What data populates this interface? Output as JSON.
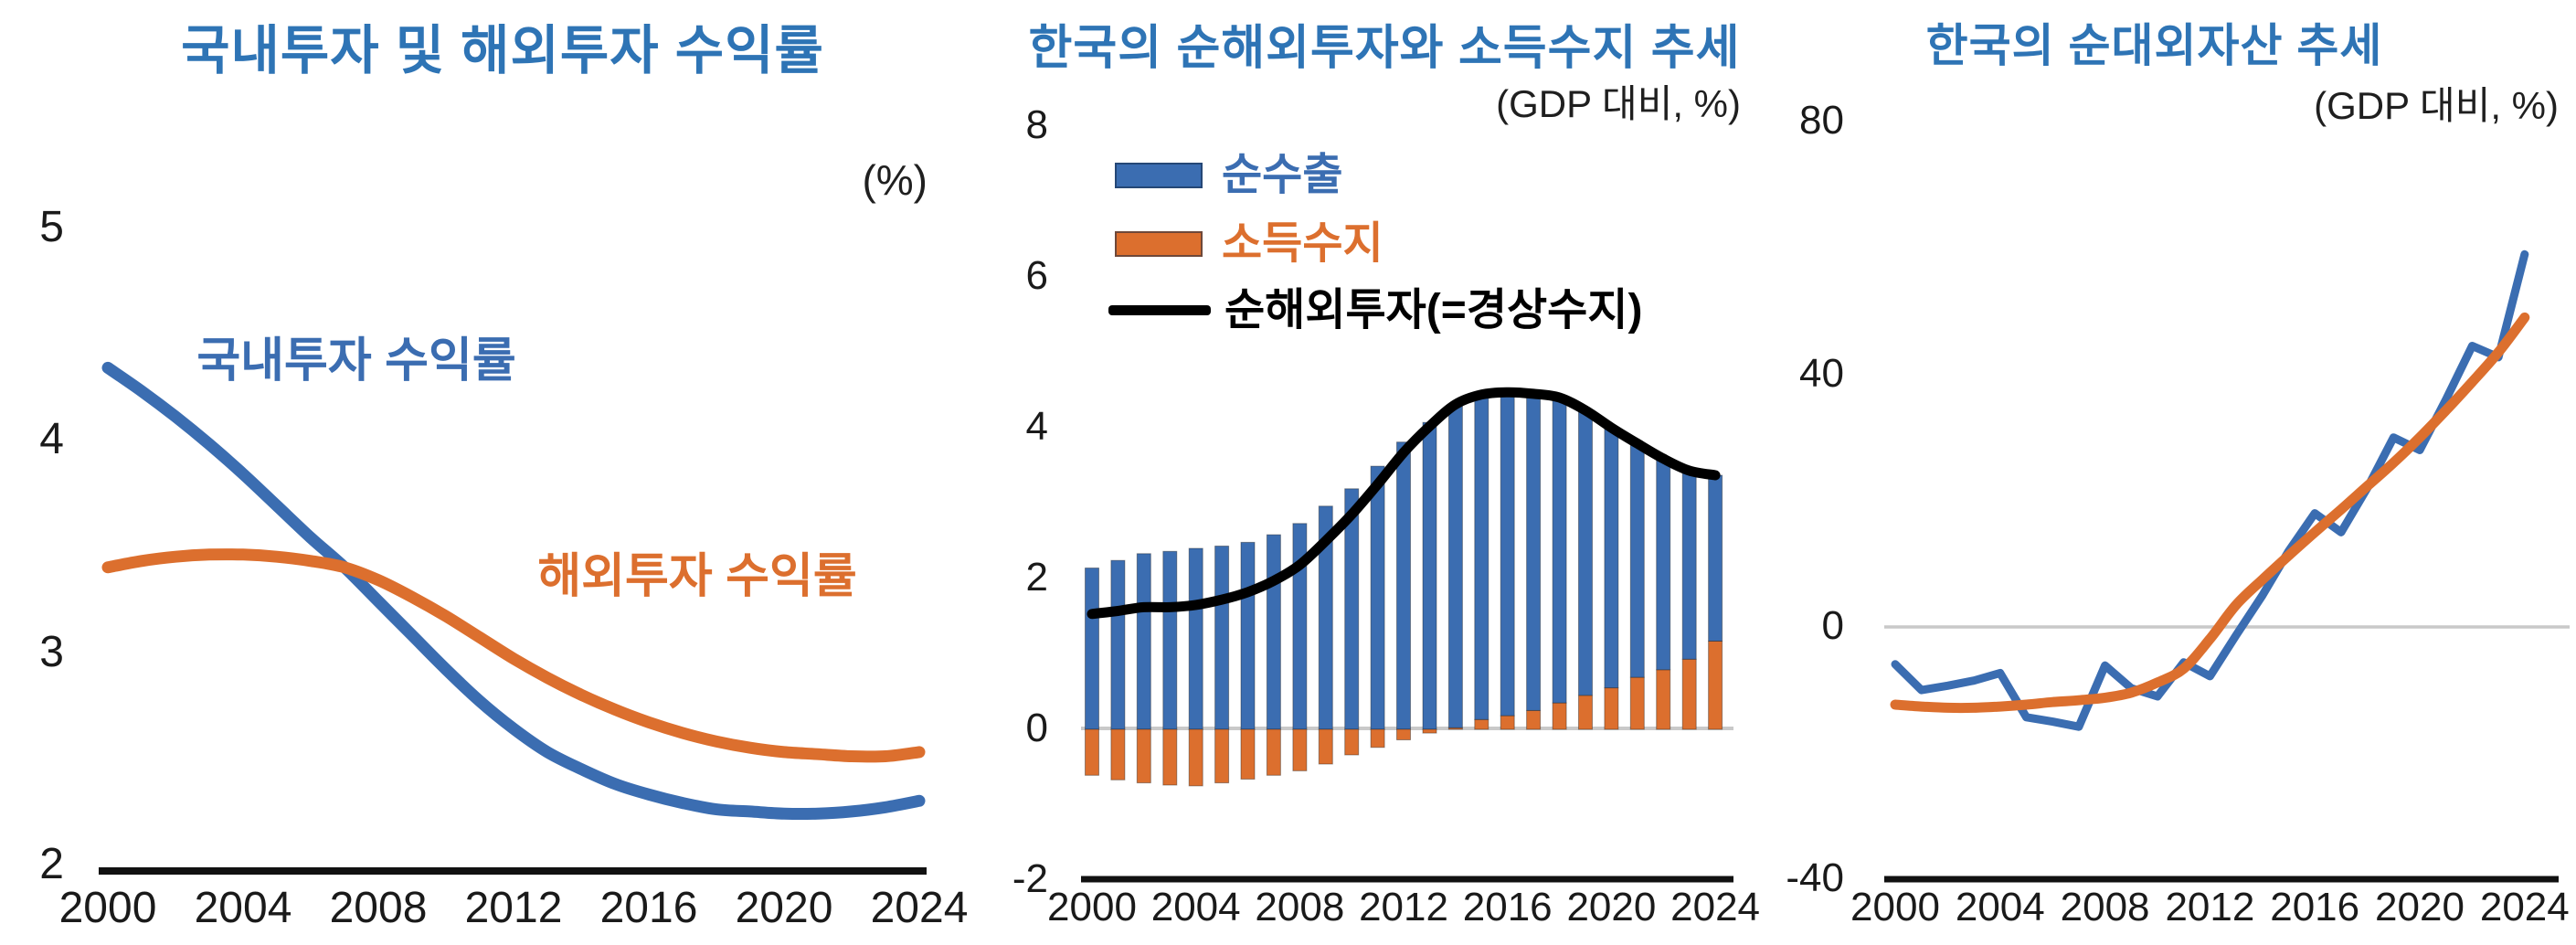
{
  "colors": {
    "title_blue": "#2E74B5",
    "series_blue": "#3B6DB1",
    "series_orange": "#DC6F2E",
    "line_black": "#000000",
    "zero_line_gray": "#C9C9C9",
    "axis_black": "#111111",
    "tick_text": "#1A1A1A"
  },
  "chart_data": [
    {
      "type": "line",
      "title": "국내투자 및 해외투자 수익률",
      "unit_label": "(%)",
      "xlabel": "",
      "ylabel": "",
      "x_range": [
        2000,
        2024
      ],
      "x_years": [
        2000,
        2001,
        2002,
        2003,
        2004,
        2005,
        2006,
        2007,
        2008,
        2009,
        2010,
        2011,
        2012,
        2013,
        2014,
        2015,
        2016,
        2017,
        2018,
        2019,
        2020,
        2021,
        2022,
        2023,
        2024
      ],
      "x_tick_years": [
        2000,
        2004,
        2008,
        2012,
        2016,
        2020,
        2024
      ],
      "y_ticks": [
        5,
        4,
        3,
        2
      ],
      "ylim": [
        2,
        5
      ],
      "grid": false,
      "legend_position": "inline-labels",
      "series": [
        {
          "name": "국내투자 수익률",
          "color": "#3B6DB1",
          "style": "smooth",
          "values": [
            4.34,
            4.23,
            4.11,
            3.98,
            3.84,
            3.69,
            3.54,
            3.4,
            3.24,
            3.08,
            2.92,
            2.77,
            2.64,
            2.53,
            2.45,
            2.38,
            2.33,
            2.29,
            2.26,
            2.25,
            2.24,
            2.24,
            2.25,
            2.27,
            2.3
          ]
        },
        {
          "name": "해외투자 수익률",
          "color": "#DC6F2E",
          "style": "smooth",
          "values": [
            3.4,
            3.43,
            3.45,
            3.46,
            3.46,
            3.45,
            3.43,
            3.4,
            3.34,
            3.26,
            3.17,
            3.07,
            2.97,
            2.88,
            2.8,
            2.73,
            2.67,
            2.62,
            2.58,
            2.55,
            2.53,
            2.52,
            2.51,
            2.51,
            2.53
          ]
        }
      ]
    },
    {
      "type": "bar+line",
      "title": "한국의 순해외투자와 소득수지 추세",
      "subtitle": "(GDP 대비, %)",
      "x_range": [
        2000,
        2024
      ],
      "x_years": [
        2000,
        2001,
        2002,
        2003,
        2004,
        2005,
        2006,
        2007,
        2008,
        2009,
        2010,
        2011,
        2012,
        2013,
        2014,
        2015,
        2016,
        2017,
        2018,
        2019,
        2020,
        2021,
        2022,
        2023,
        2024
      ],
      "x_tick_years": [
        2000,
        2004,
        2008,
        2012,
        2016,
        2020,
        2024
      ],
      "y_ticks": [
        8,
        6,
        4,
        2,
        0,
        -2
      ],
      "ylim": [
        -2,
        8
      ],
      "grid": false,
      "stacked": true,
      "zero_line": true,
      "legend_position": "top-left",
      "legend": [
        {
          "label": "순수출",
          "color": "#3B6DB1",
          "marker": "bar"
        },
        {
          "label": "소득수지",
          "color": "#DC6F2E",
          "marker": "bar"
        },
        {
          "label": "순해외투자(=경상수지)",
          "color": "#000000",
          "marker": "line"
        }
      ],
      "bar_series": [
        {
          "name": "순수출",
          "color": "#3B6DB1",
          "values": [
            2.14,
            2.24,
            2.33,
            2.36,
            2.4,
            2.43,
            2.48,
            2.58,
            2.73,
            2.96,
            3.19,
            3.49,
            3.81,
            4.07,
            4.29,
            4.31,
            4.29,
            4.2,
            4.05,
            3.78,
            3.45,
            3.1,
            2.8,
            2.5,
            2.2
          ]
        },
        {
          "name": "소득수지",
          "color": "#DC6F2E",
          "values": [
            -0.61,
            -0.67,
            -0.71,
            -0.74,
            -0.75,
            -0.71,
            -0.66,
            -0.61,
            -0.55,
            -0.46,
            -0.34,
            -0.24,
            -0.14,
            -0.05,
            0.02,
            0.13,
            0.18,
            0.25,
            0.35,
            0.45,
            0.55,
            0.69,
            0.79,
            0.93,
            1.17
          ]
        }
      ],
      "line_series": [
        {
          "name": "순해외투자(=경상수지)",
          "color": "#000000",
          "style": "smooth",
          "values": [
            1.53,
            1.57,
            1.62,
            1.62,
            1.65,
            1.72,
            1.82,
            1.97,
            2.18,
            2.5,
            2.85,
            3.25,
            3.67,
            4.02,
            4.31,
            4.44,
            4.47,
            4.45,
            4.4,
            4.23,
            4.0,
            3.79,
            3.59,
            3.43,
            3.37
          ]
        }
      ]
    },
    {
      "type": "line",
      "title": "한국의 순대외자산 추세",
      "subtitle": "(GDP 대비, %)",
      "x_range": [
        2000,
        2024
      ],
      "x_years": [
        2000,
        2001,
        2002,
        2003,
        2004,
        2005,
        2006,
        2007,
        2008,
        2009,
        2010,
        2011,
        2012,
        2013,
        2014,
        2015,
        2016,
        2017,
        2018,
        2019,
        2020,
        2021,
        2022,
        2023,
        2024
      ],
      "x_tick_years": [
        2000,
        2004,
        2008,
        2012,
        2016,
        2020,
        2024
      ],
      "y_ticks": [
        80,
        40,
        0,
        -40
      ],
      "ylim": [
        -40,
        80
      ],
      "grid": false,
      "zero_line": true,
      "legend_position": "none",
      "series": [
        {
          "name": "",
          "color": "#3B6DB1",
          "style": "jagged",
          "values": [
            -5.9,
            -10.0,
            -9.3,
            -8.5,
            -7.3,
            -14.3,
            -15.0,
            -15.8,
            -6.1,
            -9.7,
            -11.0,
            -5.6,
            -7.8,
            -1.3,
            5.0,
            12.0,
            18.0,
            15.0,
            22.0,
            30.0,
            28.0,
            36.0,
            44.5,
            42.7,
            59.0
          ]
        },
        {
          "name": "",
          "color": "#DC6F2E",
          "style": "smooth",
          "values": [
            -12.3,
            -12.6,
            -12.8,
            -12.8,
            -12.6,
            -12.3,
            -11.9,
            -11.6,
            -11.2,
            -10.4,
            -8.8,
            -6.6,
            -1.9,
            3.5,
            7.5,
            11.3,
            15.0,
            18.6,
            22.3,
            26.0,
            30.0,
            34.3,
            38.8,
            43.5,
            49.0
          ]
        }
      ]
    }
  ]
}
